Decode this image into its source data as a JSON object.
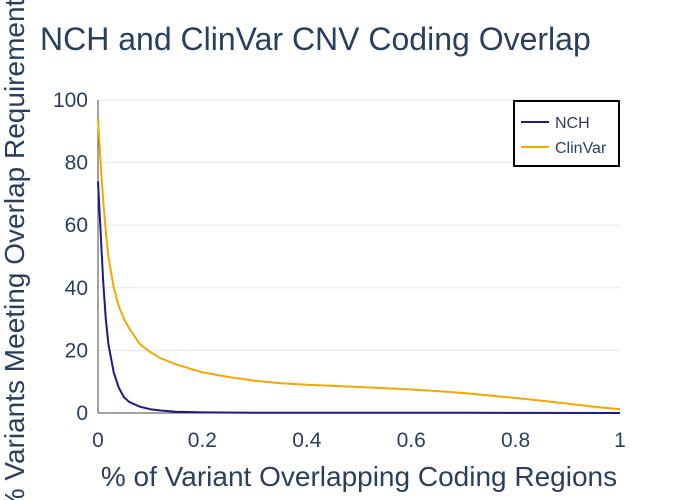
{
  "chart_data": {
    "type": "line",
    "title": "NCH and ClinVar CNV Coding Overlap",
    "xlabel": "% of Variant Overlapping Coding Regions",
    "ylabel": "% Variants Meeting Overlap Requirement",
    "xlim": [
      0,
      1
    ],
    "ylim": [
      0,
      100
    ],
    "xticks": [
      "0",
      "0.2",
      "0.4",
      "0.6",
      "0.8",
      "1"
    ],
    "yticks": [
      "0",
      "20",
      "40",
      "60",
      "80",
      "100"
    ],
    "grid": "horizontal",
    "legend_position": "top-right",
    "series": [
      {
        "name": "NCH",
        "color": "#1a1a8c",
        "x": [
          0,
          0.005,
          0.01,
          0.015,
          0.02,
          0.03,
          0.04,
          0.05,
          0.06,
          0.08,
          0.1,
          0.12,
          0.15,
          0.2,
          0.3,
          0.5,
          0.7,
          1.0
        ],
        "y": [
          74,
          58,
          42,
          30,
          22,
          13,
          8,
          5,
          3.5,
          2,
          1.2,
          0.8,
          0.4,
          0.2,
          0.1,
          0.1,
          0.05,
          0
        ]
      },
      {
        "name": "ClinVar",
        "color": "#f5a700",
        "x": [
          0,
          0.005,
          0.01,
          0.015,
          0.02,
          0.03,
          0.04,
          0.05,
          0.06,
          0.08,
          0.1,
          0.12,
          0.15,
          0.2,
          0.25,
          0.3,
          0.35,
          0.4,
          0.5,
          0.6,
          0.65,
          0.7,
          0.75,
          0.8,
          0.85,
          0.9,
          0.95,
          1.0
        ],
        "y": [
          94,
          80,
          68,
          58,
          50,
          40,
          34,
          30,
          27,
          22,
          19.5,
          17.5,
          15.5,
          13,
          11.5,
          10.3,
          9.5,
          9,
          8.3,
          7.5,
          7,
          6.4,
          5.6,
          4.8,
          3.9,
          3,
          2,
          1.2
        ]
      }
    ]
  }
}
